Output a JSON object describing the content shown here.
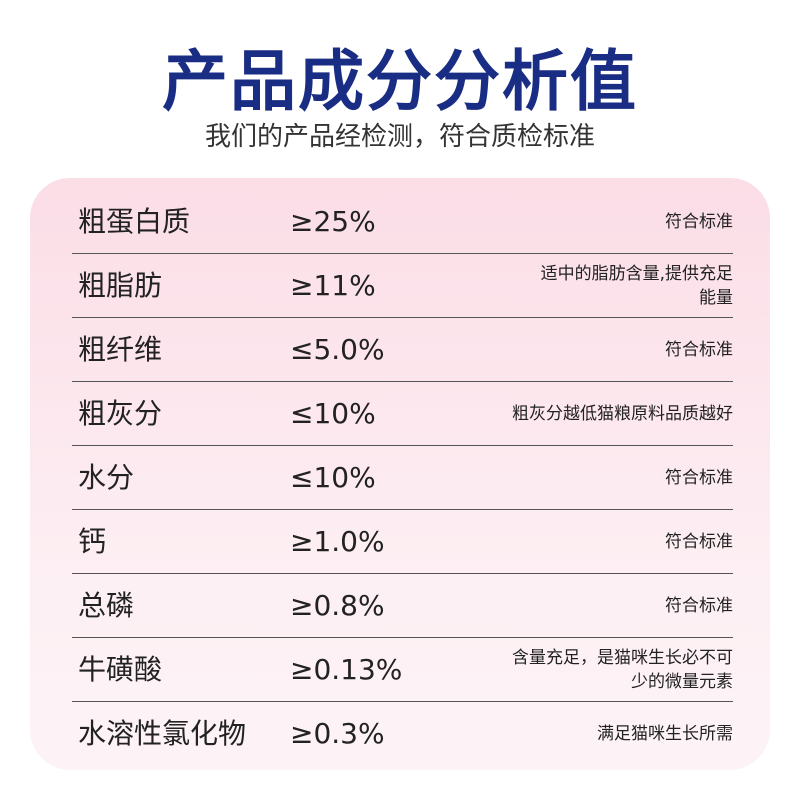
{
  "header": {
    "title": "产品成分分析值",
    "subtitle": "我们的产品经检测，符合质检标准"
  },
  "table": {
    "rows": [
      {
        "name": "粗蛋白质",
        "value": "≥25%",
        "note": [
          "符合标准"
        ]
      },
      {
        "name": "粗脂肪",
        "value": "≥11%",
        "note": [
          "适中的脂肪含量,提供充足",
          "能量"
        ]
      },
      {
        "name": "粗纤维",
        "value": "≤5.0%",
        "note": [
          "符合标准"
        ]
      },
      {
        "name": "粗灰分",
        "value": "≤10%",
        "note": [
          "粗灰分越低猫粮原料品质越好"
        ]
      },
      {
        "name": "水分",
        "value": "≤10%",
        "note": [
          "符合标准"
        ]
      },
      {
        "name": "钙",
        "value": "≥1.0%",
        "note": [
          "符合标准"
        ]
      },
      {
        "name": "总磷",
        "value": "≥0.8%",
        "note": [
          "符合标准"
        ]
      },
      {
        "name": "牛磺酸",
        "value": "≥0.13%",
        "note": [
          "含量充足，是猫咪生长必不可",
          "少的微量元素"
        ]
      },
      {
        "name": "水溶性氯化物",
        "value": "≥0.3%",
        "note": [
          "满足猫咪生长所需"
        ]
      }
    ]
  }
}
